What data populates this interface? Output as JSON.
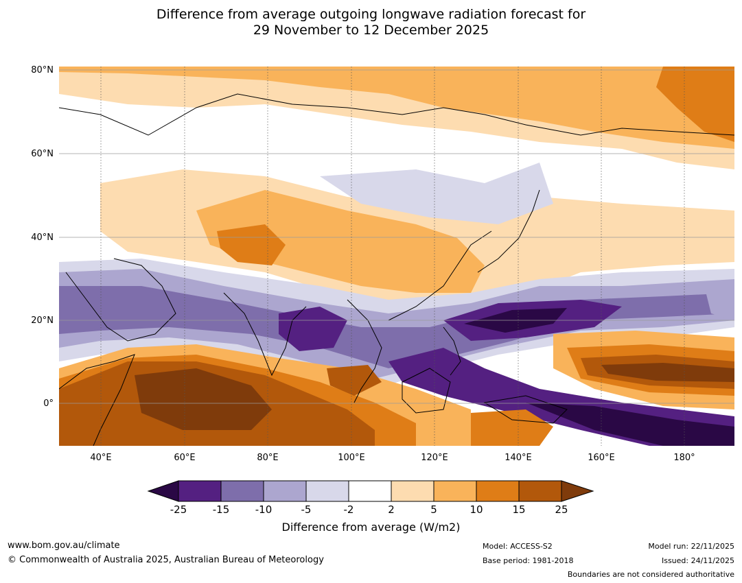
{
  "title": {
    "line1": "Difference from average outgoing longwave radiation forecast for",
    "line2": "29 November to 12 December 2025"
  },
  "map": {
    "lat_ticks": [
      "80°N",
      "60°N",
      "40°N",
      "20°N",
      "0°"
    ],
    "lon_ticks": [
      "40°E",
      "60°E",
      "80°E",
      "100°E",
      "120°E",
      "140°E",
      "160°E",
      "180°"
    ],
    "extent": {
      "lon_min": 30,
      "lon_max": 192,
      "lat_min": -10,
      "lat_max": 80
    }
  },
  "legend": {
    "ticks": [
      "-25",
      "-15",
      "-10",
      "-5",
      "-2",
      "2",
      "5",
      "10",
      "15",
      "25"
    ],
    "colors": [
      "#2a0845",
      "#542081",
      "#7e6eab",
      "#aca6cf",
      "#d8d8ea",
      "#ffffff",
      "#fddcb0",
      "#f9b35a",
      "#df7d17",
      "#b2580b",
      "#7f3b0b"
    ],
    "label": "Difference from average (W/m2)"
  },
  "footer": {
    "website": "www.bom.gov.au/climate",
    "copyright": "© Commonwealth of Australia 2025, Australian Bureau of Meteorology",
    "model": "Model: ACCESS-S2",
    "base_period": "Base period: 1981-2018",
    "model_run": "Model run: 22/11/2025",
    "issued": "Issued: 24/11/2025",
    "disclaimer": "Boundaries are not considered authoritative"
  }
}
